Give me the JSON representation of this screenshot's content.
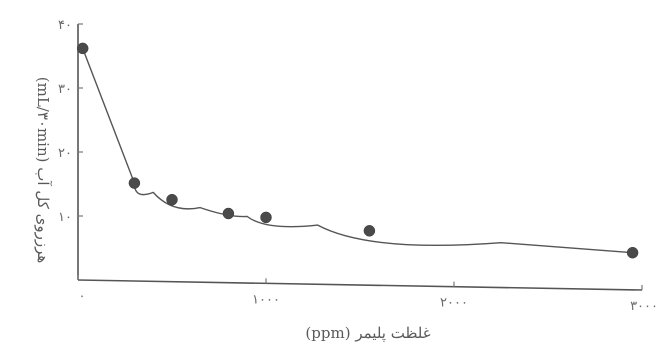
{
  "chart_data": {
    "type": "scatter",
    "xlabel": "غلظت پلیمر (ppm)",
    "ylabel": "هرزروی کل آب (mL/۳۰min)",
    "xlim": [
      0,
      3000
    ],
    "ylim": [
      0,
      40
    ],
    "x_ticks": [
      {
        "value": 0,
        "label": "۰"
      },
      {
        "value": 1000,
        "label": "۱۰۰۰"
      },
      {
        "value": 2000,
        "label": "۲۰۰۰"
      },
      {
        "value": 3000,
        "label": "۳۰۰۰"
      }
    ],
    "y_ticks": [
      {
        "value": 10,
        "label": "۱۰"
      },
      {
        "value": 20,
        "label": "۲۰"
      },
      {
        "value": 30,
        "label": "۳۰"
      },
      {
        "value": 40,
        "label": "۴۰"
      }
    ],
    "grid": false,
    "legend": "none",
    "point_color": "#4a4a4a",
    "line_color": "#555555",
    "series": [
      {
        "x": [
          25,
          300,
          500,
          800,
          1000,
          1550,
          2950
        ],
        "y": [
          36.2,
          15.3,
          12.8,
          10.8,
          10.3,
          8.5,
          5.8
        ]
      }
    ]
  }
}
